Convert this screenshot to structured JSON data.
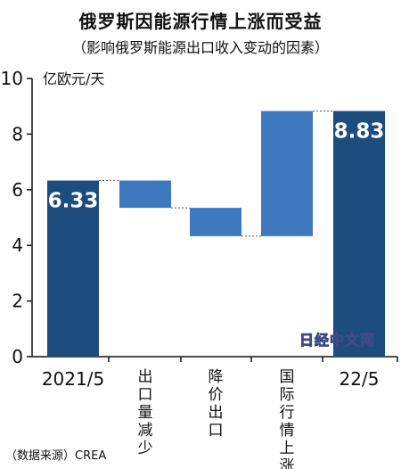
{
  "chart_data": {
    "type": "bar",
    "subtype": "waterfall",
    "title": "俄罗斯因能源行情上涨而受益",
    "subtitle": "（影响俄罗斯能源出口收入变动的因素）",
    "ylabel": "亿欧元/天",
    "ylim": [
      0,
      10
    ],
    "yticks": [
      0,
      2,
      4,
      6,
      8,
      10
    ],
    "grid": false,
    "categories": [
      "2021/5",
      "出口量减少",
      "降价出口",
      "国际行情上涨",
      "22/5"
    ],
    "bars": [
      {
        "label": "2021/5",
        "kind": "total",
        "start": 0,
        "end": 6.33,
        "data_label": "6.33"
      },
      {
        "label": "出口量减少",
        "kind": "decrease",
        "start": 6.33,
        "end": 5.35
      },
      {
        "label": "降价出口",
        "kind": "decrease",
        "start": 5.35,
        "end": 4.33
      },
      {
        "label": "国际行情上涨",
        "kind": "increase",
        "start": 4.33,
        "end": 8.83
      },
      {
        "label": "22/5",
        "kind": "total",
        "start": 0,
        "end": 8.83,
        "data_label": "8.83"
      }
    ],
    "colors": {
      "total": "#1d4c7e",
      "change": "#3e79c0",
      "connector": "#555555"
    }
  },
  "source": "（数据来源）CREA",
  "watermark": "日经中文网"
}
